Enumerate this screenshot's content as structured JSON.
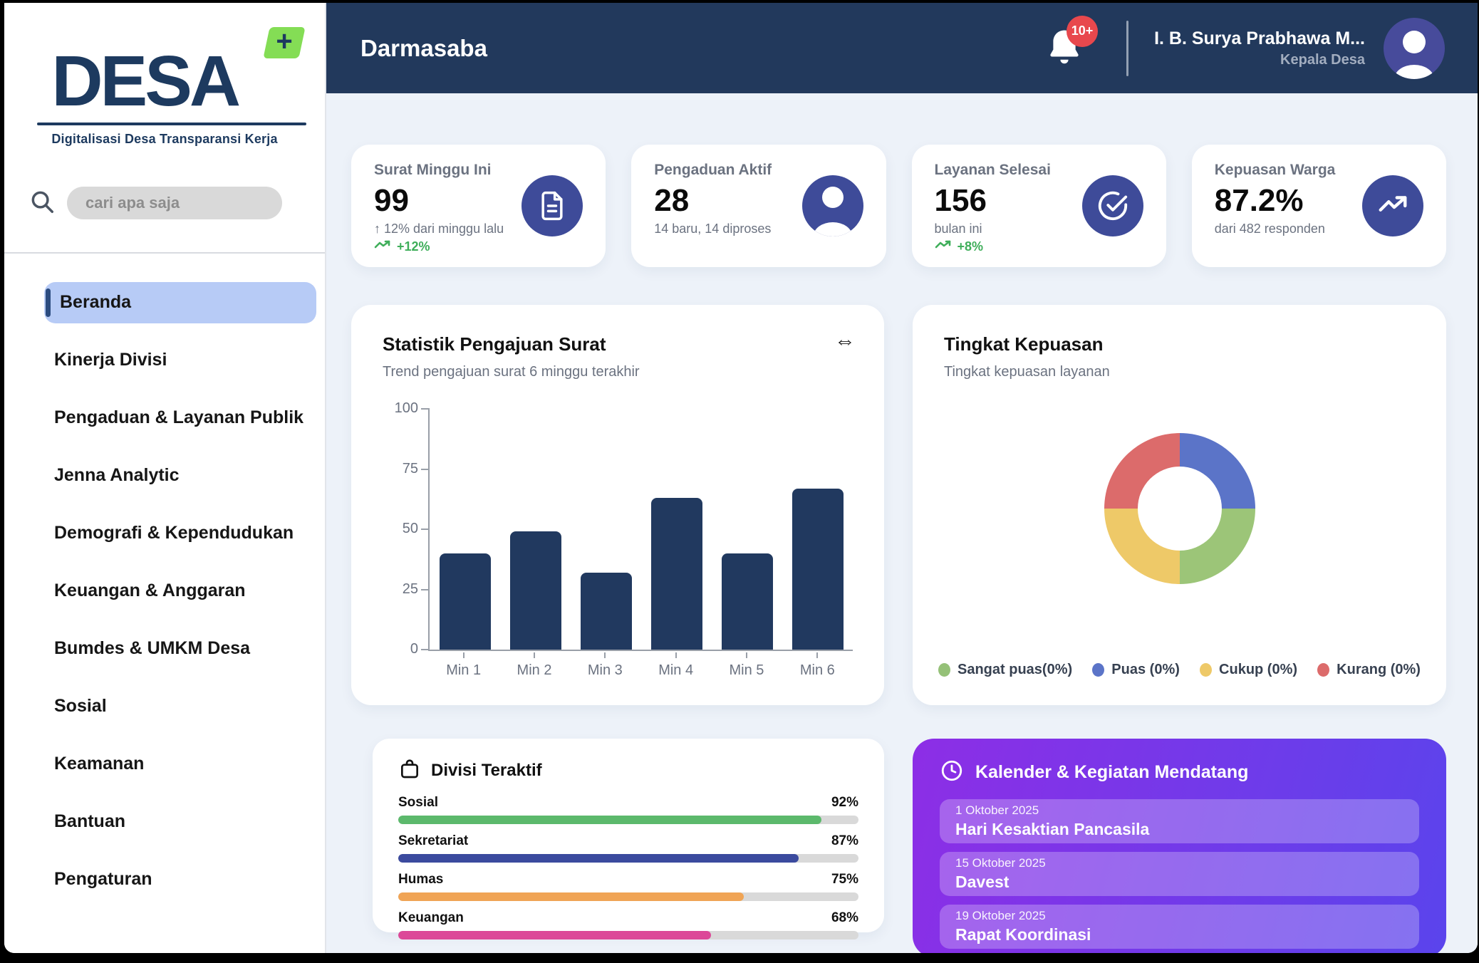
{
  "sidebar": {
    "logo": {
      "name": "DESA",
      "plus": "+",
      "tagline": "Digitalisasi Desa Transparansi Kerja"
    },
    "search": {
      "placeholder": "cari apa saja"
    },
    "items": [
      {
        "label": "Beranda",
        "slug": "beranda",
        "active": true
      },
      {
        "label": "Kinerja Divisi",
        "slug": "kinerja-divisi",
        "active": false
      },
      {
        "label": "Pengaduan & Layanan Publik",
        "slug": "pengaduan-layanan-publik",
        "active": false
      },
      {
        "label": "Jenna Analytic",
        "slug": "jenna-analytic",
        "active": false
      },
      {
        "label": "Demografi & Kependudukan",
        "slug": "demografi-kependudukan",
        "active": false
      },
      {
        "label": "Keuangan & Anggaran",
        "slug": "keuangan-anggaran",
        "active": false
      },
      {
        "label": "Bumdes & UMKM Desa",
        "slug": "bumdes-umkm-desa",
        "active": false
      },
      {
        "label": "Sosial",
        "slug": "sosial",
        "active": false
      },
      {
        "label": "Keamanan",
        "slug": "keamanan",
        "active": false
      },
      {
        "label": "Bantuan",
        "slug": "bantuan",
        "active": false
      },
      {
        "label": "Pengaturan",
        "slug": "pengaturan",
        "active": false
      }
    ]
  },
  "header": {
    "title": "Darmasaba",
    "notifications": "10+",
    "user_name": "I. B. Surya Prabhawa M...",
    "user_role": "Kepala Desa"
  },
  "stats": {
    "cards": [
      {
        "title": "Surat Minggu Ini",
        "value": "99",
        "note": "↑ 12% dari minggu lalu",
        "trend": "+12%",
        "icon": "document-icon"
      },
      {
        "title": "Pengaduan Aktif",
        "value": "28",
        "note": "14 baru, 14 diproses",
        "icon": "person-icon"
      },
      {
        "title": "Layanan Selesai",
        "value": "156",
        "note": "bulan ini",
        "trend": "+8%",
        "icon": "check-circle-icon"
      },
      {
        "title": "Kepuasan Warga",
        "value": "87.2%",
        "note": "dari 482 responden",
        "icon": "trending-up-icon"
      }
    ]
  },
  "ui": {
    "resize_glyph": "⇔"
  },
  "chart_data": [
    {
      "type": "bar",
      "title": "Statistik Pengajuan Surat",
      "subtitle": "Trend pengajuan surat 6 minggu terakhir",
      "categories": [
        "Min 1",
        "Min 2",
        "Min 3",
        "Min 4",
        "Min 5",
        "Min 6"
      ],
      "values": [
        40,
        49,
        32,
        63,
        40,
        67
      ],
      "ylim": [
        0,
        100
      ],
      "yticks": [
        0,
        25,
        50,
        75,
        100
      ],
      "bar_color": "#21395f",
      "grid": false,
      "xlabel": "",
      "ylabel": ""
    },
    {
      "type": "pie",
      "donut": true,
      "title": "Tingkat Kepuasan",
      "subtitle": "Tingkat kepuasan layanan",
      "legend_position": "bottom",
      "segments": [
        {
          "label": "Puas",
          "color": "#5b74c8",
          "display_fraction": 0.25
        },
        {
          "label": "Sangat puas",
          "color": "#9cc578",
          "display_fraction": 0.25
        },
        {
          "label": "Cukup",
          "color": "#eec968",
          "display_fraction": 0.25
        },
        {
          "label": "Kurang",
          "color": "#dc6b6b",
          "display_fraction": 0.25
        }
      ],
      "legend": [
        {
          "label": "Sangat puas(0%)",
          "color": "#95c178"
        },
        {
          "label": "Puas (0%)",
          "color": "#5b74c8"
        },
        {
          "label": "Cukup (0%)",
          "color": "#eec968"
        },
        {
          "label": "Kurang (0%)",
          "color": "#dc6b6b"
        }
      ]
    }
  ],
  "divisi": {
    "title": "Divisi Teraktif",
    "items": [
      {
        "label": "Sosial",
        "pct": 92,
        "value": "92%",
        "color": "#5cb96c"
      },
      {
        "label": "Sekretariat",
        "pct": 87,
        "value": "87%",
        "color": "#3b4a9e"
      },
      {
        "label": "Humas",
        "pct": 75,
        "value": "75%",
        "color": "#f0a455"
      },
      {
        "label": "Keuangan",
        "pct": 68,
        "value": "68%",
        "color": "#dc4898"
      }
    ]
  },
  "calendar": {
    "title": "Kalender & Kegiatan Mendatang",
    "events": [
      {
        "date": "1 Oktober 2025",
        "title": "Hari Kesaktian Pancasila"
      },
      {
        "date": "15 Oktober 2025",
        "title": "Davest"
      },
      {
        "date": "19 Oktober 2025",
        "title": "Rapat Koordinasi"
      }
    ]
  },
  "colors": {
    "brand_navy": "#1d3a5f",
    "accent_green": "#84dd55",
    "header_navy": "#22395c",
    "icon_circle_indigo": "#3e4b99",
    "positive_green": "#3fae5a",
    "badge_red": "#e8484d",
    "active_item_bg": "#b7cbf6",
    "calendar_gradient": [
      "#8d2ee6",
      "#5a44ec"
    ]
  }
}
